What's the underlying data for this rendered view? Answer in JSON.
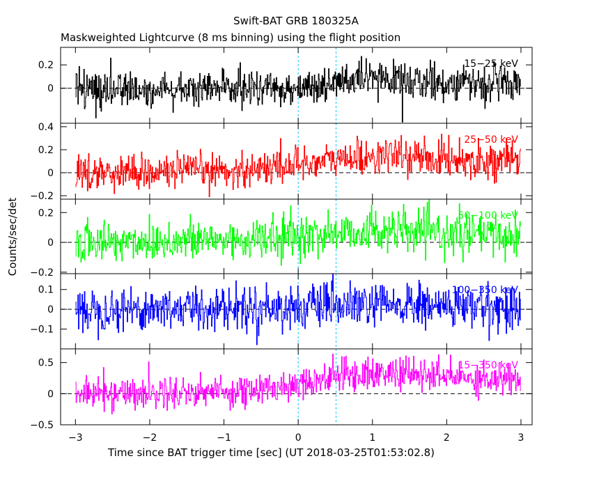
{
  "chart_data": {
    "type": "line",
    "title": "Swift-BAT GRB 180325A",
    "subtitle": "Maskweighted Lightcurve (8 ms binning) using the flight position",
    "xlabel": "Time since BAT trigger time [sec] (UT 2018-03-25T01:53:02.8)",
    "ylabel": "Counts/sec/det",
    "xlim": [
      -3.2,
      3.15
    ],
    "x_ticks": [
      "−3",
      "−2",
      "−1",
      "0",
      "1",
      "2",
      "3"
    ],
    "x_tick_values": [
      -3,
      -2,
      -1,
      0,
      1,
      2,
      3
    ],
    "bin_width_sec": 0.008,
    "data_range": [
      -3.0,
      3.0
    ],
    "marker_lines_x": [
      0,
      0.51
    ],
    "series": [
      {
        "name": "15−25 keV",
        "color": "#000000",
        "ylim": [
          -0.3,
          0.35
        ],
        "y_ticks": [
          0,
          0.2
        ],
        "y_tick_labels": [
          "0",
          "0.2"
        ],
        "level_profile": [
          [
            -3.0,
            0.0
          ],
          [
            -0.3,
            0.0
          ],
          [
            0.3,
            0.02
          ],
          [
            0.8,
            0.07
          ],
          [
            1.2,
            0.08
          ],
          [
            1.8,
            0.05
          ],
          [
            3.0,
            0.04
          ]
        ],
        "noise_sigma": 0.075
      },
      {
        "name": "25−50 keV",
        "color": "#ff0000",
        "ylim": [
          -0.23,
          0.43
        ],
        "y_ticks": [
          -0.2,
          0,
          0.2,
          0.4
        ],
        "y_tick_labels": [
          "−0.2",
          "0",
          "0.2",
          "0.4"
        ],
        "level_profile": [
          [
            -3.0,
            0.0
          ],
          [
            -0.8,
            0.02
          ],
          [
            0.0,
            0.08
          ],
          [
            0.8,
            0.13
          ],
          [
            1.2,
            0.15
          ],
          [
            2.0,
            0.12
          ],
          [
            3.0,
            0.1
          ]
        ],
        "noise_sigma": 0.075
      },
      {
        "name": "50−100 keV",
        "color": "#00ff00",
        "ylim": [
          -0.21,
          0.29
        ],
        "y_ticks": [
          -0.2,
          0,
          0.2
        ],
        "y_tick_labels": [
          "−0.2",
          "0",
          "0.2"
        ],
        "level_profile": [
          [
            -3.0,
            0.0
          ],
          [
            -0.5,
            0.02
          ],
          [
            0.2,
            0.05
          ],
          [
            1.0,
            0.08
          ],
          [
            2.0,
            0.06
          ],
          [
            3.0,
            0.04
          ]
        ],
        "noise_sigma": 0.07
      },
      {
        "name": "100−350 keV",
        "color": "#0000ff",
        "ylim": [
          -0.2,
          0.18
        ],
        "y_ticks": [
          -0.1,
          0,
          0.1
        ],
        "y_tick_labels": [
          "−0.1",
          "0",
          "0.1"
        ],
        "level_profile": [
          [
            -3.0,
            0.0
          ],
          [
            0.0,
            0.01
          ],
          [
            1.0,
            0.02
          ],
          [
            3.0,
            0.01
          ]
        ],
        "noise_sigma": 0.055
      },
      {
        "name": "15−350 keV",
        "color": "#ff00ff",
        "ylim": [
          -0.5,
          0.72
        ],
        "y_ticks": [
          -0.5,
          0,
          0.5
        ],
        "y_tick_labels": [
          "−0.5",
          "0",
          "0.5"
        ],
        "level_profile": [
          [
            -3.0,
            0.0
          ],
          [
            -0.5,
            0.05
          ],
          [
            0.0,
            0.18
          ],
          [
            0.6,
            0.3
          ],
          [
            1.2,
            0.33
          ],
          [
            2.0,
            0.27
          ],
          [
            3.0,
            0.23
          ]
        ],
        "noise_sigma": 0.13
      }
    ]
  }
}
